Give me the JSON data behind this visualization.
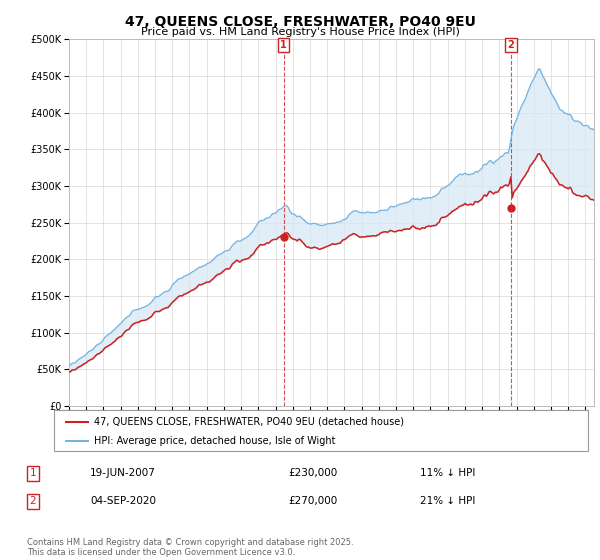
{
  "title": "47, QUEENS CLOSE, FRESHWATER, PO40 9EU",
  "subtitle": "Price paid vs. HM Land Registry's House Price Index (HPI)",
  "legend_line1": "47, QUEENS CLOSE, FRESHWATER, PO40 9EU (detached house)",
  "legend_line2": "HPI: Average price, detached house, Isle of Wight",
  "annotation1_label": "1",
  "annotation1_date": "19-JUN-2007",
  "annotation1_price": "£230,000",
  "annotation1_hpi": "11% ↓ HPI",
  "annotation2_label": "2",
  "annotation2_date": "04-SEP-2020",
  "annotation2_price": "£270,000",
  "annotation2_hpi": "21% ↓ HPI",
  "footer": "Contains HM Land Registry data © Crown copyright and database right 2025.\nThis data is licensed under the Open Government Licence v3.0.",
  "hpi_color": "#74b3e0",
  "price_color": "#cc2222",
  "annotation_color": "#cc2222",
  "fill_color": "#d6e8f5",
  "ylim": [
    0,
    500000
  ],
  "yticks": [
    0,
    50000,
    100000,
    150000,
    200000,
    250000,
    300000,
    350000,
    400000,
    450000,
    500000
  ],
  "background_color": "#ffffff",
  "grid_color": "#d8d8d8",
  "sale1_year": 2007.47,
  "sale2_year": 2020.67,
  "sale1_price": 230000,
  "sale2_price": 270000
}
